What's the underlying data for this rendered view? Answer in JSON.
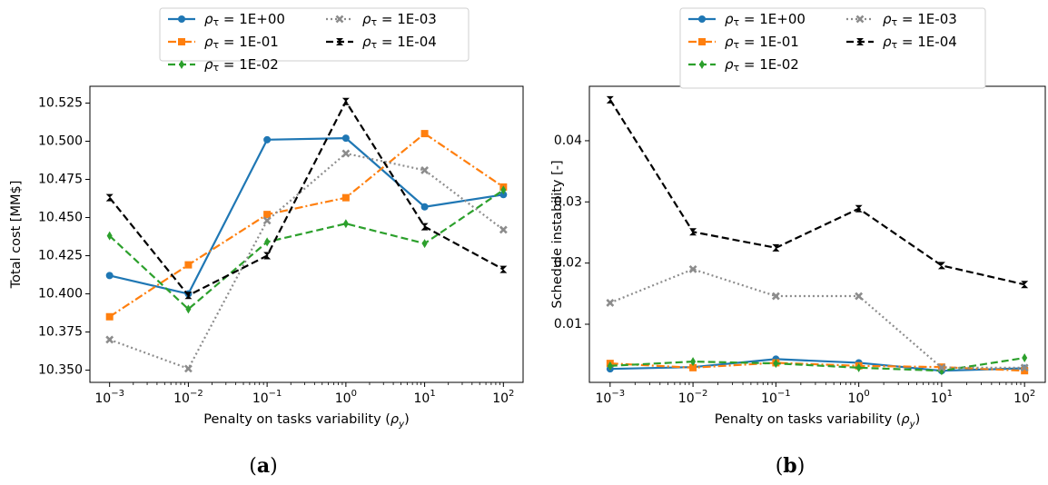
{
  "chart_data": [
    {
      "type": "line",
      "panel_label": "(a)",
      "xlabel": "Penalty on tasks variability (ρ_y)",
      "ylabel": "Total cost [MM$]",
      "xscale": "log",
      "x": [
        0.001,
        0.01,
        0.1,
        1,
        10,
        100
      ],
      "xtick_labels": [
        {
          "base": "10",
          "exp": "−3"
        },
        {
          "base": "10",
          "exp": "−2"
        },
        {
          "base": "10",
          "exp": "−1"
        },
        {
          "base": "10",
          "exp": "0"
        },
        {
          "base": "10",
          "exp": "1"
        },
        {
          "base": "10",
          "exp": "2"
        }
      ],
      "ylim": [
        10.342,
        10.536
      ],
      "yticks": [
        10.35,
        10.375,
        10.4,
        10.425,
        10.45,
        10.475,
        10.5,
        10.525
      ],
      "ytick_labels": [
        "10.350",
        "10.375",
        "10.400",
        "10.425",
        "10.450",
        "10.475",
        "10.500",
        "10.525"
      ],
      "grid": false,
      "legend_position": "above the plot",
      "series": [
        {
          "name": "ρτ = 1E+00",
          "color": "#1f77b4",
          "dash": "solid",
          "marker": "circle",
          "values": [
            10.412,
            10.4,
            10.501,
            10.502,
            10.457,
            10.465
          ]
        },
        {
          "name": "ρτ = 1E-01",
          "color": "#ff7f0e",
          "dash": "dashdot",
          "marker": "square",
          "values": [
            10.385,
            10.419,
            10.452,
            10.463,
            10.505,
            10.47
          ]
        },
        {
          "name": "ρτ = 1E-02",
          "color": "#2ca02c",
          "dash": "dashed",
          "marker": "thin_diamond",
          "values": [
            10.438,
            10.39,
            10.434,
            10.446,
            10.433,
            10.468
          ]
        },
        {
          "name": "ρτ = 1E-03",
          "color": "#8c8c8c",
          "dash": "dotted",
          "marker": "x",
          "values": [
            10.37,
            10.351,
            10.448,
            10.492,
            10.481,
            10.442
          ]
        },
        {
          "name": "ρτ = 1E-04",
          "color": "#000000",
          "dash": "dashed",
          "marker": "bowtie",
          "values": [
            10.463,
            10.399,
            10.425,
            10.526,
            10.444,
            10.416
          ]
        }
      ]
    },
    {
      "type": "line",
      "panel_label": "(b)",
      "xlabel": "Penalty on tasks variability (ρ_y)",
      "ylabel": "Schedule instability [-]",
      "xscale": "log",
      "x": [
        0.001,
        0.01,
        0.1,
        1,
        10,
        100
      ],
      "xtick_labels": [
        {
          "base": "10",
          "exp": "−3"
        },
        {
          "base": "10",
          "exp": "−2"
        },
        {
          "base": "10",
          "exp": "−1"
        },
        {
          "base": "10",
          "exp": "0"
        },
        {
          "base": "10",
          "exp": "1"
        },
        {
          "base": "10",
          "exp": "2"
        }
      ],
      "ylim": [
        0.0005,
        0.0489
      ],
      "yticks": [
        0.01,
        0.02,
        0.03,
        0.04
      ],
      "ytick_labels": [
        "0.01",
        "0.02",
        "0.03",
        "0.04"
      ],
      "grid": false,
      "legend_position": "above the plot",
      "series": [
        {
          "name": "ρτ = 1E+00",
          "color": "#1f77b4",
          "dash": "solid",
          "marker": "circle",
          "values": [
            0.0027,
            0.003,
            0.0043,
            0.0037,
            0.0024,
            0.0028
          ]
        },
        {
          "name": "ρτ = 1E-01",
          "color": "#ff7f0e",
          "dash": "dashdot",
          "marker": "square",
          "values": [
            0.0036,
            0.0029,
            0.0037,
            0.0032,
            0.003,
            0.0024
          ]
        },
        {
          "name": "ρτ = 1E-02",
          "color": "#2ca02c",
          "dash": "dashed",
          "marker": "thin_diamond",
          "values": [
            0.0032,
            0.0039,
            0.0036,
            0.0029,
            0.0024,
            0.0045
          ]
        },
        {
          "name": "ρτ = 1E-03",
          "color": "#8c8c8c",
          "dash": "dotted",
          "marker": "x",
          "values": [
            0.0135,
            0.019,
            0.0146,
            0.0146,
            0.0029,
            0.0029
          ]
        },
        {
          "name": "ρτ = 1E-04",
          "color": "#000000",
          "dash": "dashed",
          "marker": "bowtie",
          "values": [
            0.0467,
            0.0251,
            0.0225,
            0.0289,
            0.0196,
            0.0165
          ]
        }
      ]
    }
  ]
}
